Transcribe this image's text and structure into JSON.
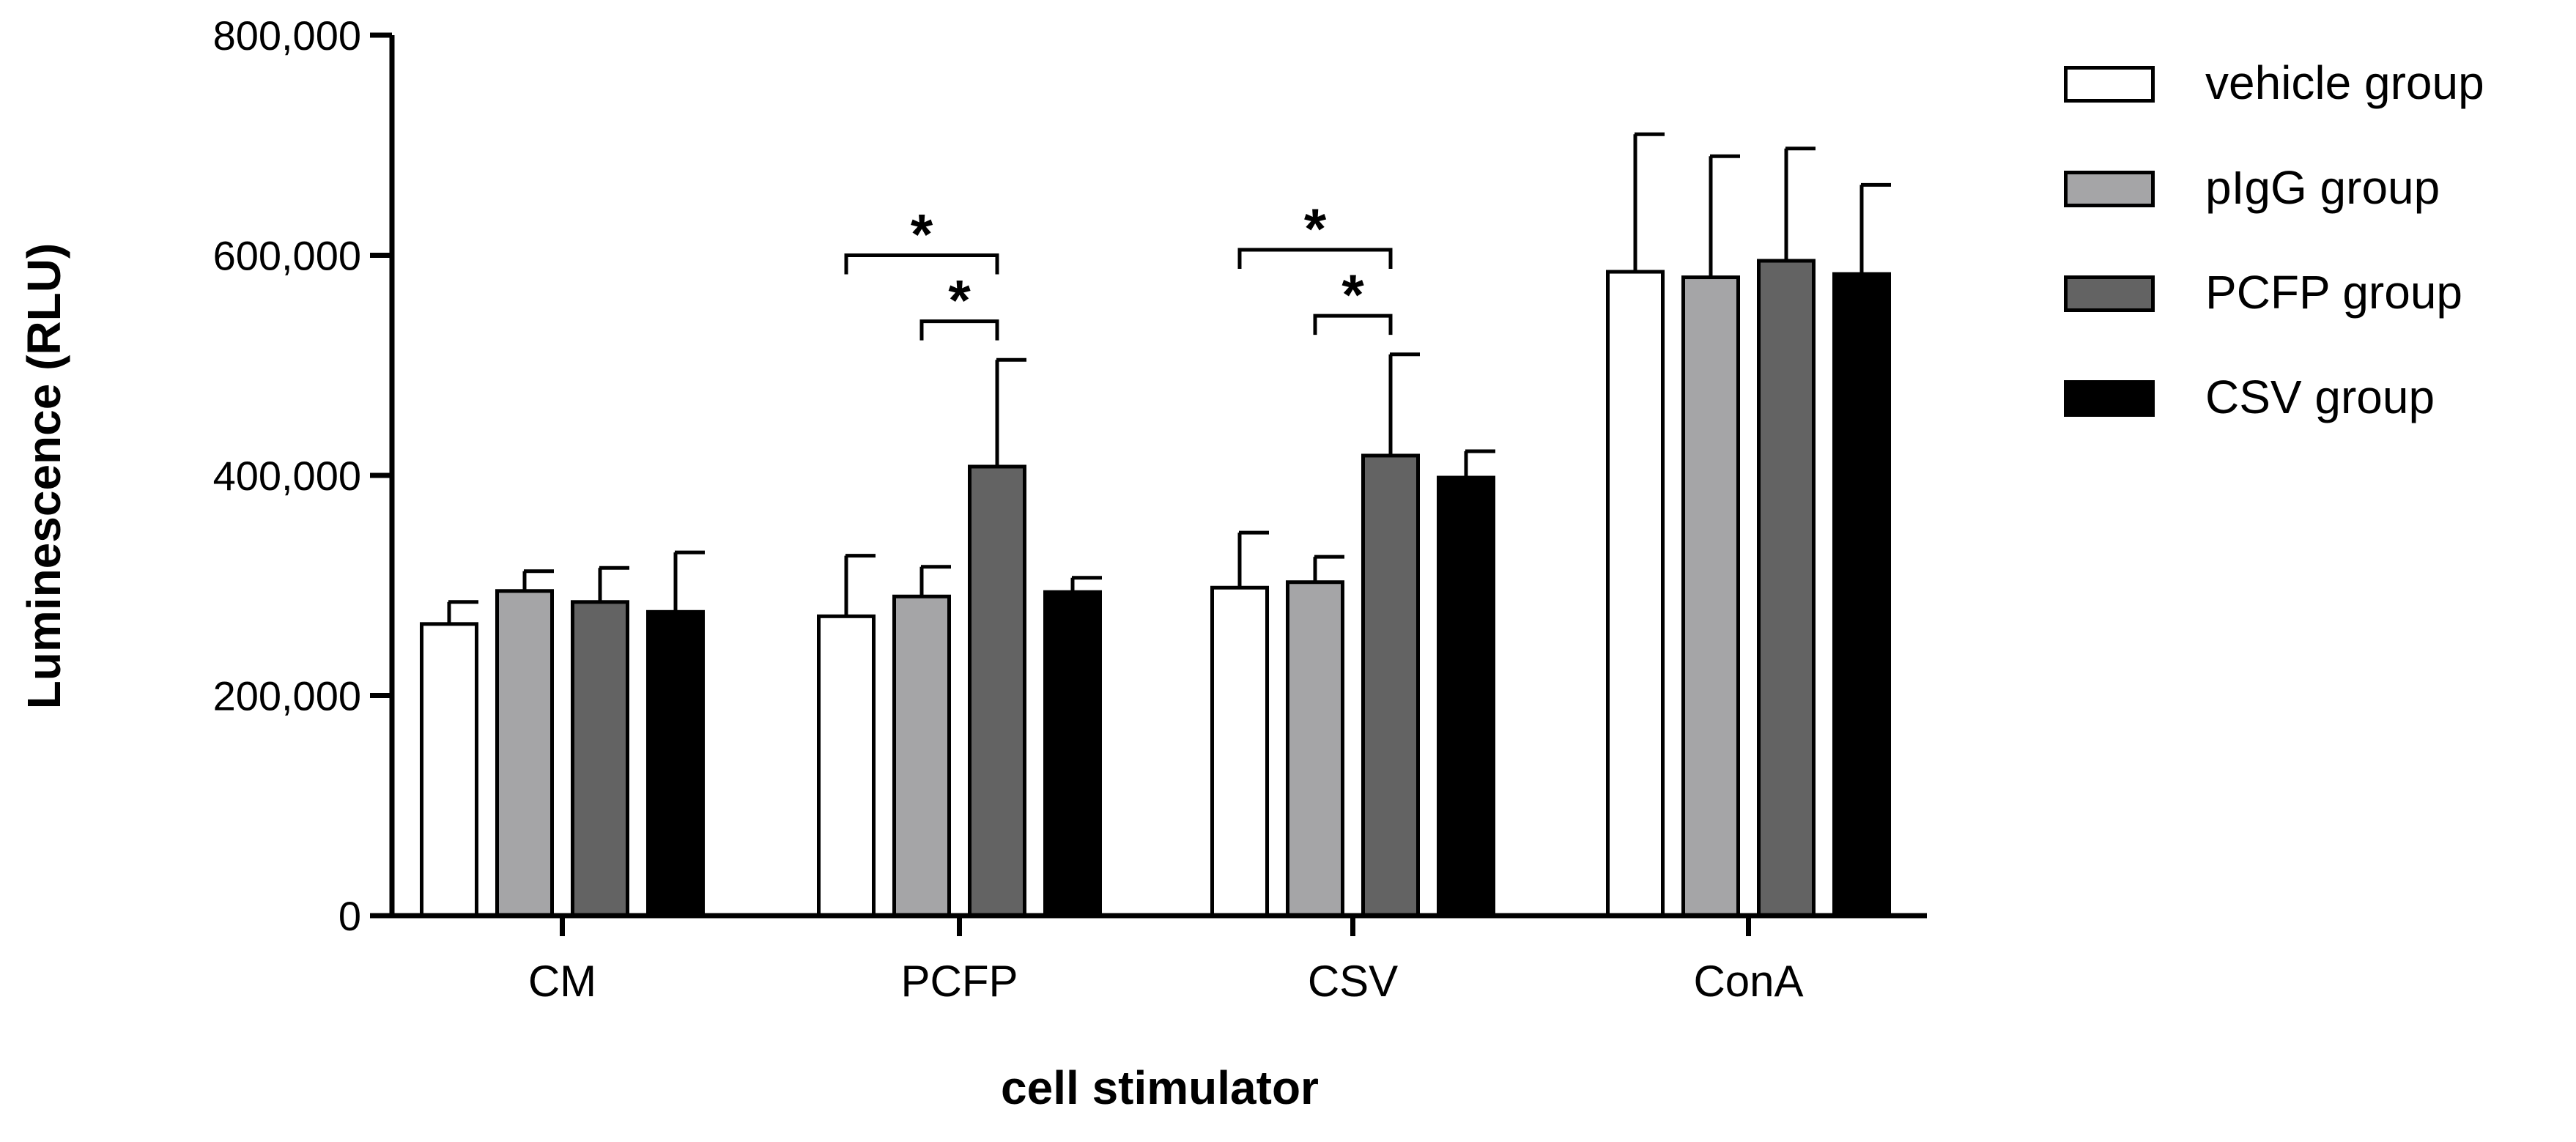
{
  "chart_data": {
    "type": "bar",
    "title": "",
    "xlabel": "cell stimulator",
    "ylabel": "Luminescence (RLU)",
    "ylim": [
      0,
      800000
    ],
    "yticks": [
      0,
      200000,
      400000,
      600000,
      800000
    ],
    "ytick_labels": [
      "0",
      "200,000",
      "400,000",
      "600,000",
      "800,000"
    ],
    "categories": [
      "CM",
      "PCFP",
      "CSV",
      "ConA"
    ],
    "series": [
      {
        "name": "vehicle group",
        "color": "#ffffff",
        "values": [
          265000,
          272000,
          298000,
          585000
        ],
        "errors": [
          20000,
          55000,
          50000,
          125000
        ]
      },
      {
        "name": "pIgG group",
        "color": "#a5a5a7",
        "values": [
          295000,
          290000,
          303000,
          580000
        ],
        "errors": [
          18000,
          27000,
          23000,
          110000
        ]
      },
      {
        "name": "PCFP group",
        "color": "#636363",
        "values": [
          285000,
          408000,
          418000,
          595000
        ],
        "errors": [
          31000,
          97000,
          92000,
          102000
        ]
      },
      {
        "name": "CSV group",
        "color": "#000000",
        "values": [
          276000,
          294000,
          398000,
          583000
        ],
        "errors": [
          54000,
          13000,
          24000,
          81000
        ]
      }
    ],
    "legend_position": "top-right",
    "significance": [
      {
        "category": "PCFP",
        "from_series": 0,
        "to_series": 2,
        "y": 600000,
        "label": "*"
      },
      {
        "category": "PCFP",
        "from_series": 1,
        "to_series": 2,
        "y": 540000,
        "label": "*"
      },
      {
        "category": "CSV",
        "from_series": 0,
        "to_series": 2,
        "y": 605000,
        "label": "*"
      },
      {
        "category": "CSV",
        "from_series": 1,
        "to_series": 2,
        "y": 545000,
        "label": "*"
      }
    ]
  }
}
